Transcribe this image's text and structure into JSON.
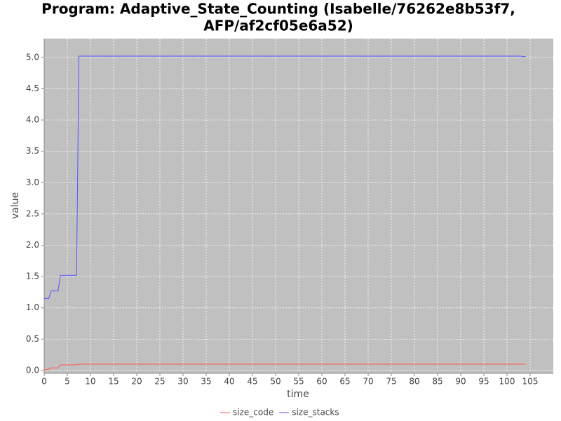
{
  "chart_data": {
    "type": "line",
    "title": [
      "Program: Adaptive_State_Counting (Isabelle/76262e8b53f7,",
      "AFP/af2cf05e6a52)"
    ],
    "x_label": "time",
    "y_label": "value",
    "x": [
      0,
      1,
      1.5,
      3,
      3.5,
      7,
      7.5,
      103,
      104
    ],
    "series": [
      {
        "name": "size_code",
        "color": "#ff5555",
        "values": [
          0.01,
          0.02,
          0.04,
          0.04,
          0.09,
          0.09,
          0.1,
          0.1,
          0.1
        ]
      },
      {
        "name": "size_stacks",
        "color": "#5555ff",
        "values": [
          1.15,
          1.15,
          1.27,
          1.27,
          1.52,
          1.52,
          5.02,
          5.02,
          5.01
        ]
      }
    ],
    "xlim": [
      0,
      110
    ],
    "ylim": [
      -0.045,
      5.3
    ],
    "xticks": [
      0,
      5,
      10,
      15,
      20,
      25,
      30,
      35,
      40,
      45,
      50,
      55,
      60,
      65,
      70,
      75,
      80,
      85,
      90,
      95,
      100,
      105
    ],
    "yticks": [
      {
        "value": 0,
        "label": "0.0"
      },
      0.5,
      {
        "value": 1,
        "label": "1.0"
      },
      1.5,
      {
        "value": 2,
        "label": "2.0"
      },
      2.5,
      {
        "value": 3,
        "label": "3.0"
      },
      3.5,
      {
        "value": 4,
        "label": "4.0"
      },
      4.5,
      {
        "value": 5,
        "label": "5.0"
      }
    ],
    "grid": true,
    "plot_background": "#c0c0c0",
    "legend": "bottom"
  }
}
